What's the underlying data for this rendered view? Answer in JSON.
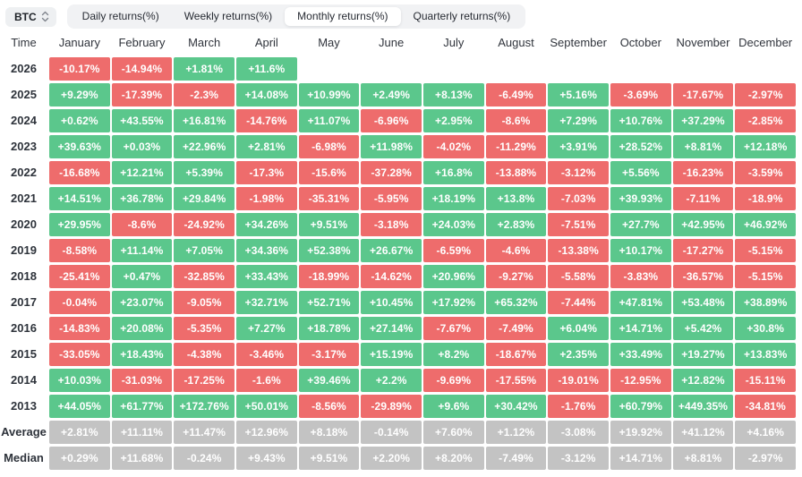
{
  "controls": {
    "symbol_selector": {
      "value": "BTC"
    },
    "tabs": [
      {
        "label": "Daily returns(%)",
        "selected": false
      },
      {
        "label": "Weekly returns(%)",
        "selected": false
      },
      {
        "label": "Monthly returns(%)",
        "selected": true
      },
      {
        "label": "Quarterly returns(%)",
        "selected": false
      }
    ]
  },
  "chart_data": {
    "type": "heatmap",
    "title": "Monthly returns(%)",
    "symbol": "BTC",
    "row_header": "Time",
    "columns": [
      "January",
      "February",
      "March",
      "April",
      "May",
      "June",
      "July",
      "August",
      "September",
      "October",
      "November",
      "December"
    ],
    "rows": [
      {
        "label": "2026",
        "kind": "year",
        "values": [
          "-10.17%",
          "-14.94%",
          "+1.81%",
          "+11.6%",
          "",
          "",
          "",
          "",
          "",
          "",
          "",
          ""
        ]
      },
      {
        "label": "2025",
        "kind": "year",
        "values": [
          "+9.29%",
          "-17.39%",
          "-2.3%",
          "+14.08%",
          "+10.99%",
          "+2.49%",
          "+8.13%",
          "-6.49%",
          "+5.16%",
          "-3.69%",
          "-17.67%",
          "-2.97%"
        ]
      },
      {
        "label": "2024",
        "kind": "year",
        "values": [
          "+0.62%",
          "+43.55%",
          "+16.81%",
          "-14.76%",
          "+11.07%",
          "-6.96%",
          "+2.95%",
          "-8.6%",
          "+7.29%",
          "+10.76%",
          "+37.29%",
          "-2.85%"
        ]
      },
      {
        "label": "2023",
        "kind": "year",
        "values": [
          "+39.63%",
          "+0.03%",
          "+22.96%",
          "+2.81%",
          "-6.98%",
          "+11.98%",
          "-4.02%",
          "-11.29%",
          "+3.91%",
          "+28.52%",
          "+8.81%",
          "+12.18%"
        ]
      },
      {
        "label": "2022",
        "kind": "year",
        "values": [
          "-16.68%",
          "+12.21%",
          "+5.39%",
          "-17.3%",
          "-15.6%",
          "-37.28%",
          "+16.8%",
          "-13.88%",
          "-3.12%",
          "+5.56%",
          "-16.23%",
          "-3.59%"
        ]
      },
      {
        "label": "2021",
        "kind": "year",
        "values": [
          "+14.51%",
          "+36.78%",
          "+29.84%",
          "-1.98%",
          "-35.31%",
          "-5.95%",
          "+18.19%",
          "+13.8%",
          "-7.03%",
          "+39.93%",
          "-7.11%",
          "-18.9%"
        ]
      },
      {
        "label": "2020",
        "kind": "year",
        "values": [
          "+29.95%",
          "-8.6%",
          "-24.92%",
          "+34.26%",
          "+9.51%",
          "-3.18%",
          "+24.03%",
          "+2.83%",
          "-7.51%",
          "+27.7%",
          "+42.95%",
          "+46.92%"
        ]
      },
      {
        "label": "2019",
        "kind": "year",
        "values": [
          "-8.58%",
          "+11.14%",
          "+7.05%",
          "+34.36%",
          "+52.38%",
          "+26.67%",
          "-6.59%",
          "-4.6%",
          "-13.38%",
          "+10.17%",
          "-17.27%",
          "-5.15%"
        ]
      },
      {
        "label": "2018",
        "kind": "year",
        "values": [
          "-25.41%",
          "+0.47%",
          "-32.85%",
          "+33.43%",
          "-18.99%",
          "-14.62%",
          "+20.96%",
          "-9.27%",
          "-5.58%",
          "-3.83%",
          "-36.57%",
          "-5.15%"
        ]
      },
      {
        "label": "2017",
        "kind": "year",
        "values": [
          "-0.04%",
          "+23.07%",
          "-9.05%",
          "+32.71%",
          "+52.71%",
          "+10.45%",
          "+17.92%",
          "+65.32%",
          "-7.44%",
          "+47.81%",
          "+53.48%",
          "+38.89%"
        ]
      },
      {
        "label": "2016",
        "kind": "year",
        "values": [
          "-14.83%",
          "+20.08%",
          "-5.35%",
          "+7.27%",
          "+18.78%",
          "+27.14%",
          "-7.67%",
          "-7.49%",
          "+6.04%",
          "+14.71%",
          "+5.42%",
          "+30.8%"
        ]
      },
      {
        "label": "2015",
        "kind": "year",
        "values": [
          "-33.05%",
          "+18.43%",
          "-4.38%",
          "-3.46%",
          "-3.17%",
          "+15.19%",
          "+8.2%",
          "-18.67%",
          "+2.35%",
          "+33.49%",
          "+19.27%",
          "+13.83%"
        ]
      },
      {
        "label": "2014",
        "kind": "year",
        "values": [
          "+10.03%",
          "-31.03%",
          "-17.25%",
          "-1.6%",
          "+39.46%",
          "+2.2%",
          "-9.69%",
          "-17.55%",
          "-19.01%",
          "-12.95%",
          "+12.82%",
          "-15.11%"
        ]
      },
      {
        "label": "2013",
        "kind": "year",
        "values": [
          "+44.05%",
          "+61.77%",
          "+172.76%",
          "+50.01%",
          "-8.56%",
          "-29.89%",
          "+9.6%",
          "+30.42%",
          "-1.76%",
          "+60.79%",
          "+449.35%",
          "-34.81%"
        ]
      },
      {
        "label": "Average",
        "kind": "summary",
        "values": [
          "+2.81%",
          "+11.11%",
          "+11.47%",
          "+12.96%",
          "+8.18%",
          "-0.14%",
          "+7.60%",
          "+1.12%",
          "-3.08%",
          "+19.92%",
          "+41.12%",
          "+4.16%"
        ]
      },
      {
        "label": "Median",
        "kind": "summary",
        "values": [
          "+0.29%",
          "+11.68%",
          "-0.24%",
          "+9.43%",
          "+9.51%",
          "+2.20%",
          "+8.20%",
          "-7.49%",
          "-3.12%",
          "+14.71%",
          "+8.81%",
          "-2.97%"
        ]
      }
    ],
    "colors": {
      "positive": "#5bc78c",
      "negative": "#ee6c6c",
      "summary": "#c3c3c3"
    },
    "layout": {
      "grid": "off",
      "legend": "none",
      "cell_text_color": "#ffffff"
    }
  }
}
